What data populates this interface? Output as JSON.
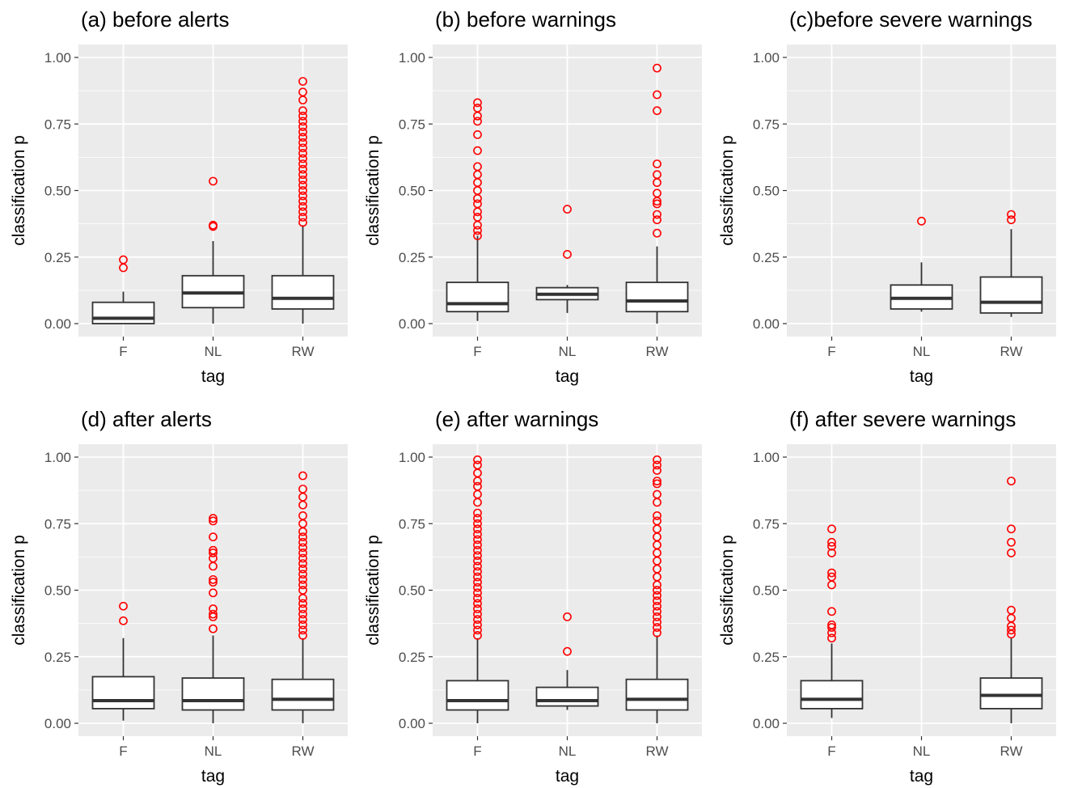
{
  "chart_data": [
    {
      "panel": "a",
      "type": "boxplot",
      "title": "(a) before alerts",
      "xlabel": "tag",
      "ylabel": "classification p",
      "categories": [
        "F",
        "NL",
        "RW"
      ],
      "yticks": [
        "0.00",
        "0.25",
        "0.50",
        "0.75",
        "1.00"
      ],
      "ylim": [
        0,
        1
      ],
      "grid": true,
      "boxes": [
        {
          "category": "F",
          "whisker_low": 0.0,
          "q1": 0.0,
          "median": 0.02,
          "q3": 0.08,
          "whisker_high": 0.12,
          "outliers": [
            0.21,
            0.24
          ]
        },
        {
          "category": "NL",
          "whisker_low": 0.0,
          "q1": 0.06,
          "median": 0.115,
          "q3": 0.18,
          "whisker_high": 0.31,
          "outliers": [
            0.365,
            0.37,
            0.535
          ]
        },
        {
          "category": "RW",
          "whisker_low": 0.0,
          "q1": 0.055,
          "median": 0.095,
          "q3": 0.18,
          "whisker_high": 0.37,
          "outliers": [
            0.38,
            0.4,
            0.42,
            0.44,
            0.46,
            0.48,
            0.5,
            0.52,
            0.54,
            0.56,
            0.58,
            0.6,
            0.62,
            0.64,
            0.66,
            0.68,
            0.7,
            0.72,
            0.74,
            0.76,
            0.78,
            0.8,
            0.84,
            0.87,
            0.91
          ]
        }
      ]
    },
    {
      "panel": "b",
      "type": "boxplot",
      "title": "(b) before warnings",
      "xlabel": "tag",
      "ylabel": "classification p",
      "categories": [
        "F",
        "NL",
        "RW"
      ],
      "yticks": [
        "0.00",
        "0.25",
        "0.50",
        "0.75",
        "1.00"
      ],
      "ylim": [
        0,
        1
      ],
      "grid": true,
      "boxes": [
        {
          "category": "F",
          "whisker_low": 0.01,
          "q1": 0.045,
          "median": 0.075,
          "q3": 0.155,
          "whisker_high": 0.33,
          "outliers": [
            0.33,
            0.35,
            0.37,
            0.4,
            0.42,
            0.45,
            0.47,
            0.5,
            0.53,
            0.56,
            0.59,
            0.65,
            0.71,
            0.76,
            0.78,
            0.81,
            0.83
          ]
        },
        {
          "category": "NL",
          "whisker_low": 0.04,
          "q1": 0.09,
          "median": 0.11,
          "q3": 0.135,
          "whisker_high": 0.145,
          "outliers": [
            0.26,
            0.43
          ]
        },
        {
          "category": "RW",
          "whisker_low": 0.0,
          "q1": 0.045,
          "median": 0.085,
          "q3": 0.155,
          "whisker_high": 0.29,
          "outliers": [
            0.34,
            0.39,
            0.41,
            0.45,
            0.46,
            0.49,
            0.53,
            0.56,
            0.6,
            0.8,
            0.86,
            0.96
          ]
        }
      ]
    },
    {
      "panel": "c",
      "type": "boxplot",
      "title": "(c)before severe warnings",
      "xlabel": "tag",
      "ylabel": "classification p",
      "categories": [
        "F",
        "NL",
        "RW"
      ],
      "yticks": [
        "0.00",
        "0.25",
        "0.50",
        "0.75",
        "1.00"
      ],
      "ylim": [
        0,
        1
      ],
      "grid": true,
      "boxes": [
        {
          "category": "F",
          "empty": true
        },
        {
          "category": "NL",
          "whisker_low": 0.045,
          "q1": 0.055,
          "median": 0.095,
          "q3": 0.145,
          "whisker_high": 0.23,
          "outliers": [
            0.385
          ]
        },
        {
          "category": "RW",
          "whisker_low": 0.025,
          "q1": 0.04,
          "median": 0.08,
          "q3": 0.175,
          "whisker_high": 0.355,
          "outliers": [
            0.39,
            0.41
          ]
        }
      ]
    },
    {
      "panel": "d",
      "type": "boxplot",
      "title": "(d) after alerts",
      "xlabel": "tag",
      "ylabel": "classification p",
      "categories": [
        "F",
        "NL",
        "RW"
      ],
      "yticks": [
        "0.00",
        "0.25",
        "0.50",
        "0.75",
        "1.00"
      ],
      "ylim": [
        0,
        1
      ],
      "grid": true,
      "boxes": [
        {
          "category": "F",
          "whisker_low": 0.01,
          "q1": 0.055,
          "median": 0.085,
          "q3": 0.175,
          "whisker_high": 0.32,
          "outliers": [
            0.385,
            0.44
          ]
        },
        {
          "category": "NL",
          "whisker_low": 0.0,
          "q1": 0.05,
          "median": 0.085,
          "q3": 0.17,
          "whisker_high": 0.33,
          "outliers": [
            0.355,
            0.4,
            0.41,
            0.43,
            0.49,
            0.53,
            0.54,
            0.59,
            0.62,
            0.64,
            0.65,
            0.7,
            0.76,
            0.77
          ]
        },
        {
          "category": "RW",
          "whisker_low": 0.0,
          "q1": 0.05,
          "median": 0.09,
          "q3": 0.165,
          "whisker_high": 0.32,
          "outliers": [
            0.33,
            0.35,
            0.37,
            0.39,
            0.41,
            0.43,
            0.45,
            0.47,
            0.5,
            0.52,
            0.54,
            0.56,
            0.58,
            0.6,
            0.62,
            0.64,
            0.66,
            0.68,
            0.7,
            0.72,
            0.75,
            0.78,
            0.82,
            0.85,
            0.88,
            0.93
          ]
        }
      ]
    },
    {
      "panel": "e",
      "type": "boxplot",
      "title": "(e) after warnings",
      "xlabel": "tag",
      "ylabel": "classification p",
      "categories": [
        "F",
        "NL",
        "RW"
      ],
      "yticks": [
        "0.00",
        "0.25",
        "0.50",
        "0.75",
        "1.00"
      ],
      "ylim": [
        0,
        1
      ],
      "grid": true,
      "boxes": [
        {
          "category": "F",
          "whisker_low": 0.0,
          "q1": 0.05,
          "median": 0.085,
          "q3": 0.16,
          "whisker_high": 0.32,
          "outliers": [
            0.33,
            0.35,
            0.37,
            0.39,
            0.41,
            0.43,
            0.45,
            0.47,
            0.49,
            0.51,
            0.53,
            0.55,
            0.57,
            0.59,
            0.61,
            0.63,
            0.65,
            0.67,
            0.69,
            0.71,
            0.73,
            0.75,
            0.77,
            0.79,
            0.83,
            0.86,
            0.89,
            0.91,
            0.94,
            0.97,
            0.99
          ]
        },
        {
          "category": "NL",
          "whisker_low": 0.05,
          "q1": 0.065,
          "median": 0.085,
          "q3": 0.135,
          "whisker_high": 0.2,
          "outliers": [
            0.27,
            0.4
          ]
        },
        {
          "category": "RW",
          "whisker_low": 0.0,
          "q1": 0.05,
          "median": 0.09,
          "q3": 0.165,
          "whisker_high": 0.33,
          "outliers": [
            0.34,
            0.36,
            0.38,
            0.4,
            0.42,
            0.44,
            0.46,
            0.48,
            0.5,
            0.52,
            0.55,
            0.58,
            0.61,
            0.64,
            0.67,
            0.7,
            0.73,
            0.76,
            0.78,
            0.83,
            0.86,
            0.9,
            0.91,
            0.95,
            0.97,
            0.99
          ]
        }
      ]
    },
    {
      "panel": "f",
      "type": "boxplot",
      "title": "(f) after severe warnings",
      "xlabel": "tag",
      "ylabel": "classification p",
      "categories": [
        "F",
        "NL",
        "RW"
      ],
      "yticks": [
        "0.00",
        "0.25",
        "0.50",
        "0.75",
        "1.00"
      ],
      "ylim": [
        0,
        1
      ],
      "grid": true,
      "boxes": [
        {
          "category": "F",
          "whisker_low": 0.02,
          "q1": 0.055,
          "median": 0.09,
          "q3": 0.16,
          "whisker_high": 0.3,
          "outliers": [
            0.32,
            0.34,
            0.36,
            0.37,
            0.42,
            0.52,
            0.55,
            0.565,
            0.64,
            0.665,
            0.68,
            0.73
          ]
        },
        {
          "category": "NL",
          "empty": true
        },
        {
          "category": "RW",
          "whisker_low": 0.0,
          "q1": 0.055,
          "median": 0.105,
          "q3": 0.17,
          "whisker_high": 0.32,
          "outliers": [
            0.335,
            0.35,
            0.365,
            0.395,
            0.425,
            0.64,
            0.68,
            0.73,
            0.91
          ]
        }
      ]
    }
  ],
  "colors": {
    "panel_background": "#ebebeb",
    "gridline": "#ffffff",
    "outlier": "#ff0000",
    "box_stroke": "#333333",
    "tick_text": "#4d4d4d"
  }
}
